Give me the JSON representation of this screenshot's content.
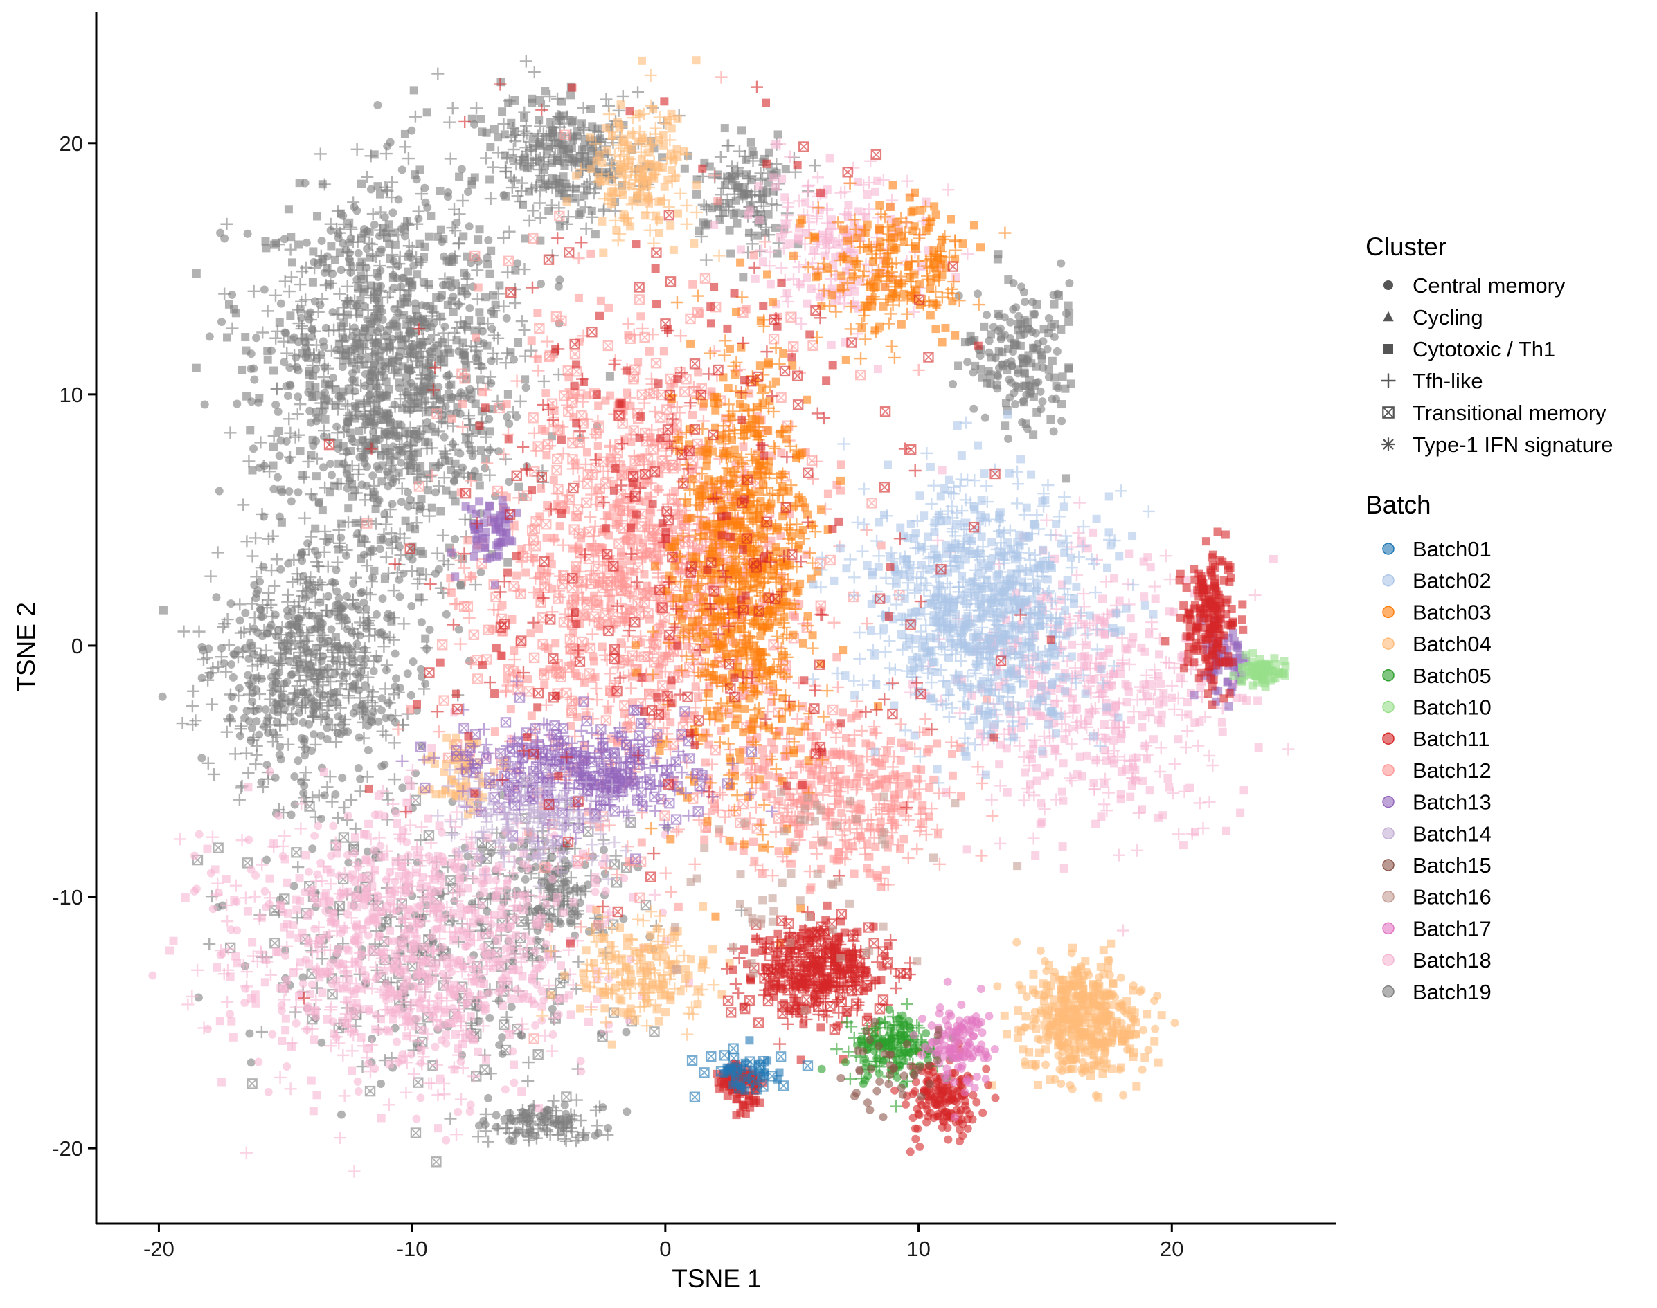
{
  "chart_data": {
    "type": "scatter",
    "title": "",
    "xlabel": "TSNE 1",
    "ylabel": "TSNE 2",
    "xlim": [
      -22.5,
      26.5
    ],
    "ylim": [
      -23,
      25.2
    ],
    "x_ticks": [
      -20,
      -10,
      0,
      10,
      20
    ],
    "y_ticks": [
      -20,
      -10,
      0,
      10,
      20
    ],
    "x_tick_labels": [
      "-20",
      "-10",
      "0",
      "10",
      "20"
    ],
    "y_tick_labels": [
      "-20",
      "-10",
      "0",
      "10",
      "20"
    ],
    "grid": false,
    "legend_position": "right",
    "legends": {
      "shape": {
        "title": "Cluster",
        "items": [
          {
            "label": "Central memory",
            "shape": "circle"
          },
          {
            "label": "Cycling",
            "shape": "triangle"
          },
          {
            "label": "Cytotoxic / Th1",
            "shape": "square"
          },
          {
            "label": "Tfh-like",
            "shape": "plus"
          },
          {
            "label": "Transitional memory",
            "shape": "boxed-x"
          },
          {
            "label": "Type-1 IFN signature",
            "shape": "asterisk"
          }
        ]
      },
      "color": {
        "title": "Batch",
        "items": [
          {
            "label": "Batch01",
            "color": "#1f77b4"
          },
          {
            "label": "Batch02",
            "color": "#aec7e8"
          },
          {
            "label": "Batch03",
            "color": "#ff7f0e"
          },
          {
            "label": "Batch04",
            "color": "#ffbb78"
          },
          {
            "label": "Batch05",
            "color": "#2ca02c"
          },
          {
            "label": "Batch10",
            "color": "#98df8a"
          },
          {
            "label": "Batch11",
            "color": "#d62728"
          },
          {
            "label": "Batch12",
            "color": "#ff9896"
          },
          {
            "label": "Batch13",
            "color": "#9467bd"
          },
          {
            "label": "Batch14",
            "color": "#c5b0d5"
          },
          {
            "label": "Batch15",
            "color": "#8c564b"
          },
          {
            "label": "Batch16",
            "color": "#c49c94"
          },
          {
            "label": "Batch17",
            "color": "#e377c2"
          },
          {
            "label": "Batch18",
            "color": "#f7b6d2"
          },
          {
            "label": "Batch19",
            "color": "#7f7f7f"
          }
        ]
      }
    },
    "point_alpha": 0.6,
    "regions": [
      {
        "batch": "Batch19",
        "center": [
          -11,
          11
        ],
        "spread": [
          4.5,
          7.5
        ],
        "count": 1400,
        "shapes": [
          "plus",
          "circle",
          "square"
        ]
      },
      {
        "batch": "Batch19",
        "center": [
          -14,
          -1
        ],
        "spread": [
          3.5,
          4.5
        ],
        "count": 700,
        "shapes": [
          "plus",
          "circle"
        ]
      },
      {
        "batch": "Batch19",
        "center": [
          -4,
          19.5
        ],
        "spread": [
          3,
          2.5
        ],
        "count": 300,
        "shapes": [
          "plus",
          "square"
        ]
      },
      {
        "batch": "Batch19",
        "center": [
          3,
          18
        ],
        "spread": [
          2,
          2
        ],
        "count": 150,
        "shapes": [
          "square",
          "plus"
        ]
      },
      {
        "batch": "Batch19",
        "center": [
          14,
          11.5
        ],
        "spread": [
          1.8,
          2.5
        ],
        "count": 180,
        "shapes": [
          "square",
          "circle"
        ]
      },
      {
        "batch": "Batch19",
        "center": [
          -4.5,
          -9.5
        ],
        "spread": [
          1.8,
          2
        ],
        "count": 150,
        "shapes": [
          "plus",
          "circle"
        ]
      },
      {
        "batch": "Batch19",
        "center": [
          -5,
          -19
        ],
        "spread": [
          2,
          0.8
        ],
        "count": 120,
        "shapes": [
          "circle",
          "plus"
        ]
      },
      {
        "batch": "Batch19",
        "center": [
          -9,
          -12
        ],
        "spread": [
          7,
          5
        ],
        "count": 400,
        "shapes": [
          "circle",
          "boxed-x",
          "plus"
        ]
      },
      {
        "batch": "Batch18",
        "center": [
          -10,
          -12
        ],
        "spread": [
          7,
          5
        ],
        "count": 1100,
        "shapes": [
          "plus",
          "square",
          "circle"
        ]
      },
      {
        "batch": "Batch18",
        "center": [
          17,
          -2
        ],
        "spread": [
          5,
          5
        ],
        "count": 500,
        "shapes": [
          "square",
          "plus"
        ]
      },
      {
        "batch": "Batch18",
        "center": [
          7,
          16
        ],
        "spread": [
          3,
          3
        ],
        "count": 220,
        "shapes": [
          "square",
          "plus"
        ]
      },
      {
        "batch": "Batch12",
        "center": [
          -1,
          3
        ],
        "spread": [
          6,
          9
        ],
        "count": 1300,
        "shapes": [
          "plus",
          "square",
          "boxed-x"
        ]
      },
      {
        "batch": "Batch12",
        "center": [
          7,
          -6
        ],
        "spread": [
          4,
          3
        ],
        "count": 400,
        "shapes": [
          "square",
          "plus"
        ]
      },
      {
        "batch": "Batch03",
        "center": [
          3,
          3
        ],
        "spread": [
          2.5,
          8
        ],
        "count": 900,
        "shapes": [
          "plus",
          "square"
        ]
      },
      {
        "batch": "Batch03",
        "center": [
          9,
          15
        ],
        "spread": [
          3,
          2.5
        ],
        "count": 250,
        "shapes": [
          "square",
          "plus"
        ]
      },
      {
        "batch": "Batch02",
        "center": [
          12.5,
          1.5
        ],
        "spread": [
          4,
          4.5
        ],
        "count": 900,
        "shapes": [
          "plus",
          "square"
        ]
      },
      {
        "batch": "Batch04",
        "center": [
          16.5,
          -15
        ],
        "spread": [
          2.2,
          2.2
        ],
        "count": 450,
        "shapes": [
          "circle",
          "square"
        ]
      },
      {
        "batch": "Batch04",
        "center": [
          -1,
          -13
        ],
        "spread": [
          2.5,
          2
        ],
        "count": 200,
        "shapes": [
          "square",
          "plus"
        ]
      },
      {
        "batch": "Batch04",
        "center": [
          -1,
          19
        ],
        "spread": [
          1.8,
          2.5
        ],
        "count": 200,
        "shapes": [
          "square",
          "plus"
        ]
      },
      {
        "batch": "Batch04",
        "center": [
          -8,
          -5
        ],
        "spread": [
          1.2,
          1.2
        ],
        "count": 60,
        "shapes": [
          "square"
        ]
      },
      {
        "batch": "Batch13",
        "center": [
          -3,
          -5
        ],
        "spread": [
          4.5,
          2
        ],
        "count": 400,
        "shapes": [
          "plus",
          "boxed-x"
        ]
      },
      {
        "batch": "Batch13",
        "center": [
          -7,
          4.5
        ],
        "spread": [
          1,
          1.2
        ],
        "count": 60,
        "shapes": [
          "square"
        ]
      },
      {
        "batch": "Batch13",
        "center": [
          22,
          -0.5
        ],
        "spread": [
          0.8,
          1.2
        ],
        "count": 60,
        "shapes": [
          "square"
        ]
      },
      {
        "batch": "Batch14",
        "center": [
          -5,
          -7
        ],
        "spread": [
          3,
          2
        ],
        "count": 200,
        "shapes": [
          "plus"
        ]
      },
      {
        "batch": "Batch11",
        "center": [
          6,
          -13
        ],
        "spread": [
          2.5,
          2
        ],
        "count": 400,
        "shapes": [
          "square",
          "plus",
          "boxed-x"
        ]
      },
      {
        "batch": "Batch11",
        "center": [
          21.5,
          1
        ],
        "spread": [
          1,
          2.5
        ],
        "count": 180,
        "shapes": [
          "square"
        ]
      },
      {
        "batch": "Batch11",
        "center": [
          11,
          -18
        ],
        "spread": [
          1.5,
          1.5
        ],
        "count": 150,
        "shapes": [
          "circle"
        ]
      },
      {
        "batch": "Batch11",
        "center": [
          3,
          -17.5
        ],
        "spread": [
          0.8,
          0.8
        ],
        "count": 80,
        "shapes": [
          "square"
        ]
      },
      {
        "batch": "Batch11",
        "center": [
          0,
          5
        ],
        "spread": [
          10,
          12
        ],
        "count": 350,
        "shapes": [
          "plus",
          "boxed-x",
          "square"
        ]
      },
      {
        "batch": "Batch10",
        "center": [
          23.5,
          -1
        ],
        "spread": [
          0.8,
          0.5
        ],
        "count": 80,
        "shapes": [
          "square"
        ]
      },
      {
        "batch": "Batch05",
        "center": [
          9,
          -16
        ],
        "spread": [
          1.5,
          1.2
        ],
        "count": 180,
        "shapes": [
          "circle",
          "plus"
        ]
      },
      {
        "batch": "Batch17",
        "center": [
          11.5,
          -16
        ],
        "spread": [
          1.2,
          1.5
        ],
        "count": 120,
        "shapes": [
          "circle"
        ]
      },
      {
        "batch": "Batch01",
        "center": [
          3,
          -17
        ],
        "spread": [
          1.5,
          1
        ],
        "count": 50,
        "shapes": [
          "square",
          "boxed-x"
        ]
      },
      {
        "batch": "Batch15",
        "center": [
          9,
          -17
        ],
        "spread": [
          2,
          1.5
        ],
        "count": 40,
        "shapes": [
          "circle"
        ]
      },
      {
        "batch": "Batch16",
        "center": [
          5,
          -10
        ],
        "spread": [
          5,
          4
        ],
        "count": 60,
        "shapes": [
          "square"
        ]
      }
    ]
  }
}
